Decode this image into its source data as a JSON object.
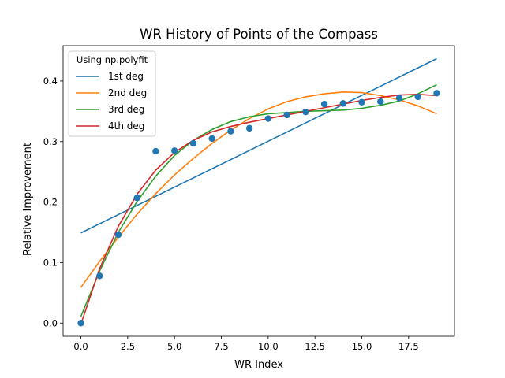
{
  "chart_data": {
    "type": "line",
    "title": "WR History of Points of the Compass",
    "xlabel": "WR Index",
    "ylabel": "Relative Improvement",
    "xlim": [
      -0.95,
      19.95
    ],
    "ylim": [
      -0.0218,
      0.4585
    ],
    "xticks": [
      0,
      2.5,
      5,
      7.5,
      10,
      12.5,
      15,
      17.5
    ],
    "xtick_labels": [
      "0.0",
      "2.5",
      "5.0",
      "7.5",
      "10.0",
      "12.5",
      "15.0",
      "17.5"
    ],
    "yticks": [
      0,
      0.1,
      0.2,
      0.3,
      0.4
    ],
    "ytick_labels": [
      "0.0",
      "0.1",
      "0.2",
      "0.3",
      "0.4"
    ],
    "grid": false,
    "legend": {
      "title": "Using np.polyfit",
      "placement": "upper-left"
    },
    "scatter": {
      "color": "#1f77b4",
      "x": [
        0,
        1,
        2,
        3,
        4,
        5,
        6,
        7,
        8,
        9,
        10,
        11,
        12,
        13,
        14,
        15,
        16,
        17,
        18,
        19
      ],
      "y": [
        0.0,
        0.078,
        0.146,
        0.207,
        0.284,
        0.285,
        0.297,
        0.305,
        0.317,
        0.322,
        0.338,
        0.344,
        0.349,
        0.362,
        0.363,
        0.365,
        0.366,
        0.372,
        0.374,
        0.38
      ]
    },
    "series": [
      {
        "name": "1st deg",
        "color": "#1f77b4",
        "x": [
          0,
          19
        ],
        "y": [
          0.149,
          0.437
        ]
      },
      {
        "name": "2nd deg",
        "color": "#ff7f0e",
        "x": [
          0,
          1,
          2,
          3,
          4,
          5,
          6,
          7,
          8,
          9,
          10,
          11,
          12,
          13,
          14,
          15,
          16,
          17,
          18,
          19
        ],
        "y": [
          0.059,
          0.102,
          0.142,
          0.18,
          0.214,
          0.245,
          0.272,
          0.297,
          0.319,
          0.338,
          0.354,
          0.366,
          0.374,
          0.379,
          0.382,
          0.381,
          0.376,
          0.369,
          0.359,
          0.346
        ]
      },
      {
        "name": "3rd deg",
        "color": "#2ca02c",
        "x": [
          0,
          1,
          2,
          3,
          4,
          5,
          6,
          7,
          8,
          9,
          10,
          11,
          12,
          13,
          14,
          15,
          16,
          17,
          18,
          19
        ],
        "y": [
          0.011,
          0.086,
          0.15,
          0.201,
          0.243,
          0.277,
          0.302,
          0.32,
          0.333,
          0.341,
          0.346,
          0.348,
          0.35,
          0.351,
          0.352,
          0.355,
          0.36,
          0.367,
          0.379,
          0.394
        ]
      },
      {
        "name": "4th deg",
        "color": "#d62728",
        "x": [
          0,
          1,
          2,
          3,
          4,
          5,
          6,
          7,
          8,
          9,
          10,
          11,
          12,
          13,
          14,
          15,
          16,
          17,
          18,
          19
        ],
        "y": [
          -0.002,
          0.09,
          0.16,
          0.213,
          0.253,
          0.282,
          0.302,
          0.316,
          0.325,
          0.332,
          0.338,
          0.344,
          0.35,
          0.356,
          0.362,
          0.368,
          0.373,
          0.377,
          0.378,
          0.376
        ]
      }
    ]
  }
}
